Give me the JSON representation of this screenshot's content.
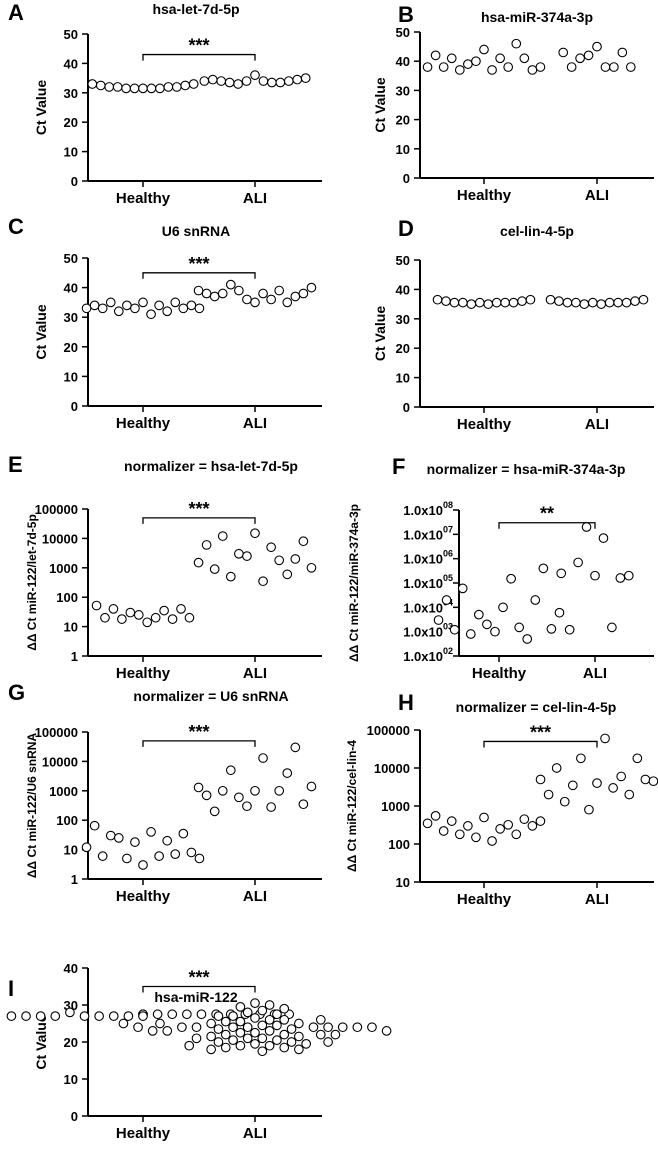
{
  "chart_data": [
    {
      "panel": "A",
      "type": "scatter",
      "title": "hsa-let-7d-5p",
      "ylabel": "Ct Value",
      "scale": "linear",
      "ylim": [
        0,
        50
      ],
      "yticks": [
        0,
        10,
        20,
        30,
        40,
        50
      ],
      "categories": [
        "Healthy",
        "ALI"
      ],
      "significance": {
        "label": "***",
        "from": 0,
        "to": 1,
        "y": 43
      },
      "groups": [
        {
          "name": "Healthy",
          "values": [
            33,
            32.5,
            32,
            32,
            31.5,
            31.5,
            31.5,
            31.5,
            31.5,
            32,
            32,
            32.5,
            33
          ]
        },
        {
          "name": "ALI",
          "values": [
            34,
            34.5,
            34,
            33.5,
            33,
            34,
            36,
            34,
            33.5,
            33.5,
            34,
            34.5,
            35
          ]
        }
      ]
    },
    {
      "panel": "B",
      "type": "scatter",
      "title": "hsa-miR-374a-3p",
      "ylabel": "Ct Value",
      "scale": "linear",
      "ylim": [
        0,
        50
      ],
      "yticks": [
        0,
        10,
        20,
        30,
        40,
        50
      ],
      "categories": [
        "Healthy",
        "ALI"
      ],
      "groups": [
        {
          "name": "Healthy",
          "values": [
            38,
            42,
            38,
            41,
            37,
            39,
            40,
            44,
            37,
            41,
            38,
            46,
            41,
            37,
            38
          ]
        },
        {
          "name": "ALI",
          "values": [
            43,
            38,
            41,
            42,
            45,
            38,
            38,
            43,
            38
          ]
        }
      ]
    },
    {
      "panel": "C",
      "type": "scatter",
      "title": "U6 snRNA",
      "ylabel": "Ct Value",
      "scale": "linear",
      "ylim": [
        0,
        50
      ],
      "yticks": [
        0,
        10,
        20,
        30,
        40,
        50
      ],
      "categories": [
        "Healthy",
        "ALI"
      ],
      "significance": {
        "label": "***",
        "from": 0,
        "to": 1,
        "y": 45
      },
      "groups": [
        {
          "name": "Healthy",
          "values": [
            33,
            34,
            33,
            35,
            32,
            34,
            33,
            35,
            31,
            34,
            32,
            35,
            33,
            34,
            33
          ]
        },
        {
          "name": "ALI",
          "values": [
            39,
            38,
            37,
            38,
            41,
            39,
            36,
            35,
            38,
            36,
            39,
            35,
            37,
            38,
            40
          ]
        }
      ]
    },
    {
      "panel": "D",
      "type": "scatter",
      "title": "cel-lin-4-5p",
      "ylabel": "Ct Value",
      "scale": "linear",
      "ylim": [
        0,
        50
      ],
      "yticks": [
        0,
        10,
        20,
        30,
        40,
        50
      ],
      "categories": [
        "Healthy",
        "ALI"
      ],
      "groups": [
        {
          "name": "Healthy",
          "values": [
            36.5,
            36,
            35.5,
            35.5,
            35,
            35.5,
            35,
            35.5,
            35.5,
            35.5,
            36,
            36.5
          ]
        },
        {
          "name": "ALI",
          "values": [
            36.5,
            36,
            35.5,
            35.5,
            35,
            35.5,
            35,
            35.5,
            35.5,
            35.5,
            36,
            36.5
          ]
        }
      ]
    },
    {
      "panel": "E",
      "type": "scatter",
      "title": "normalizer = hsa-let-7d-5p",
      "ylabel": "ΔΔ Ct miR-122/let-7d-5p",
      "scale": "log",
      "ylim": [
        1,
        100000
      ],
      "yticks": [
        "1",
        "10",
        "100",
        "1000",
        "10000",
        "100000"
      ],
      "categories": [
        "Healthy",
        "ALI"
      ],
      "significance": {
        "label": "***",
        "from": 0,
        "to": 1,
        "y": 50000
      },
      "groups": [
        {
          "name": "Healthy",
          "values": [
            52,
            20,
            40,
            18,
            30,
            25,
            14,
            20,
            35,
            18,
            40,
            20
          ]
        },
        {
          "name": "ALI",
          "values": [
            1500,
            6000,
            900,
            12000,
            500,
            3000,
            2500,
            15000,
            350,
            5000,
            1800,
            600,
            2000,
            8000,
            1000
          ]
        }
      ]
    },
    {
      "panel": "F",
      "type": "scatter",
      "title": "normalizer = hsa-miR-374a-3p",
      "ylabel": "ΔΔ Ct miR-122/miR-374a-3p",
      "scale": "log",
      "ylim": [
        100,
        100000000
      ],
      "yticks": [
        "1.0x10^02",
        "1.0x10^03",
        "1.0x10^04",
        "1.0x10^05",
        "1.0x10^06",
        "1.0x10^07",
        "1.0x10^08"
      ],
      "categories": [
        "Healthy",
        "ALI"
      ],
      "significance": {
        "label": "**",
        "from": 0,
        "to": 1,
        "y": 30000000
      },
      "groups": [
        {
          "name": "Healthy",
          "values": [
            3000,
            20000,
            1200,
            60000,
            800,
            5000,
            2000,
            1000,
            10000,
            150000,
            1500,
            500,
            20000,
            400000,
            1300,
            6000
          ]
        },
        {
          "name": "ALI",
          "values": [
            250000,
            1200,
            700000,
            20000000,
            200000,
            7000000,
            1500,
            160000,
            200000
          ]
        }
      ]
    },
    {
      "panel": "G",
      "type": "scatter",
      "title": "normalizer = U6 snRNA",
      "ylabel": "ΔΔ Ct miR-122/U6 snRNA",
      "scale": "log",
      "ylim": [
        1,
        100000
      ],
      "yticks": [
        "1",
        "10",
        "100",
        "1000",
        "10000",
        "100000"
      ],
      "categories": [
        "Healthy",
        "ALI"
      ],
      "significance": {
        "label": "***",
        "from": 0,
        "to": 1,
        "y": 50000
      },
      "groups": [
        {
          "name": "Healthy",
          "values": [
            12,
            65,
            6,
            30,
            25,
            5,
            18,
            3,
            40,
            6,
            20,
            7,
            35,
            8,
            5
          ]
        },
        {
          "name": "ALI",
          "values": [
            1300,
            700,
            200,
            1000,
            5000,
            600,
            300,
            1000,
            13000,
            280,
            1000,
            4000,
            30000,
            350,
            1400
          ]
        }
      ]
    },
    {
      "panel": "H",
      "type": "scatter",
      "title": "normalizer = cel-lin-4-5p",
      "ylabel": "ΔΔ Ct miR-122/cel-lin-4",
      "scale": "log",
      "ylim": [
        10,
        100000
      ],
      "yticks": [
        "10",
        "100",
        "1000",
        "10000",
        "100000"
      ],
      "categories": [
        "Healthy",
        "ALI"
      ],
      "significance": {
        "label": "***",
        "from": 0,
        "to": 1,
        "y": 50000
      },
      "groups": [
        {
          "name": "Healthy",
          "values": [
            350,
            550,
            220,
            400,
            180,
            300,
            150,
            500,
            120,
            250,
            320,
            180,
            450,
            300,
            400
          ]
        },
        {
          "name": "ALI",
          "values": [
            5000,
            2000,
            10000,
            1300,
            3500,
            18000,
            800,
            4000,
            60000,
            3000,
            6000,
            2000,
            18000,
            5000,
            4500
          ]
        }
      ]
    },
    {
      "panel": "I",
      "type": "scatter",
      "title": "hsa-miR-122",
      "ylabel": "Ct Value",
      "scale": "linear",
      "ylim": [
        0,
        40
      ],
      "yticks": [
        0,
        10,
        20,
        30,
        40
      ],
      "categories": [
        "Healthy",
        "ALI"
      ],
      "significance": {
        "label": "***",
        "from": 0,
        "to": 1,
        "y": 35
      },
      "groups": [
        {
          "name": "Healthy",
          "values": [
            27.5,
            27.5,
            27,
            27.5,
            27,
            27.5,
            27,
            27.5,
            27,
            27.5,
            28,
            27.5,
            27,
            27.5,
            27,
            27.5,
            27,
            27.5,
            27,
            27.5,
            27.5,
            27
          ]
        },
        {
          "name": "ALI",
          "values": [
            30.5,
            30,
            29.5,
            29,
            28.5,
            28,
            27.5,
            27,
            26.5,
            26,
            26,
            25.5,
            25.5,
            25,
            25,
            24.5,
            24.5,
            24,
            24,
            24,
            24,
            24,
            24,
            24,
            23.5,
            23.5,
            23,
            23,
            22.5,
            22.5,
            22,
            22,
            21.5,
            21.5,
            21,
            21,
            20.5,
            20.5,
            20,
            20,
            19.5,
            19.5,
            19,
            19,
            18.5,
            18.5,
            18,
            18,
            17.5,
            24,
            25,
            23,
            22,
            26,
            27,
            21,
            20,
            19,
            24,
            24,
            23,
            25,
            22
          ]
        }
      ]
    }
  ]
}
